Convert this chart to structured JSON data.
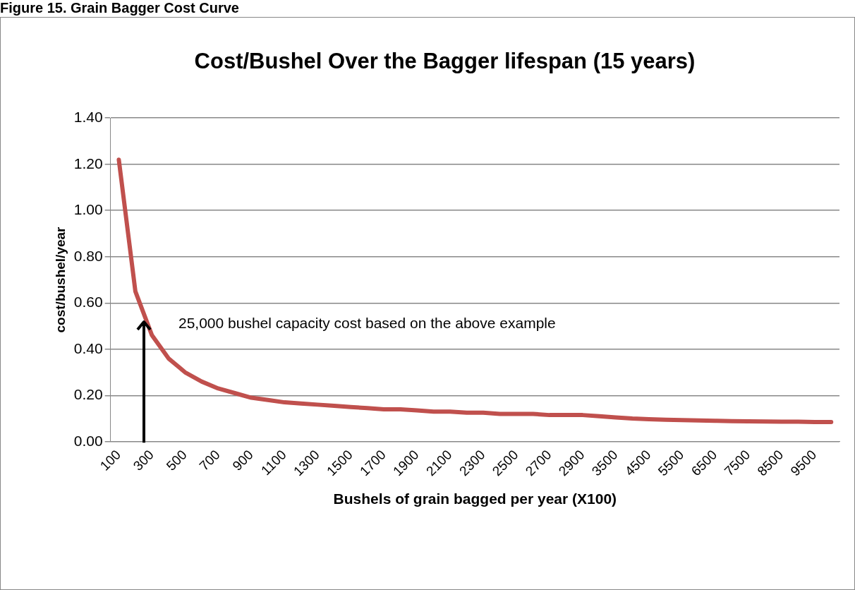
{
  "chart_data": {
    "type": "line",
    "title": "Cost/Bushel Over the Bagger lifespan (15 years)",
    "xlabel": "Bushels of grain bagged per year (X100)",
    "ylabel": "cost/bushel/year",
    "categories": [
      "100",
      null,
      "300",
      null,
      "500",
      null,
      "700",
      null,
      "900",
      null,
      "1100",
      null,
      "1300",
      null,
      "1500",
      null,
      "1700",
      null,
      "1900",
      null,
      "2100",
      null,
      "2300",
      null,
      "2500",
      null,
      "2700",
      null,
      "2900",
      null,
      "3500",
      null,
      "4500",
      null,
      "5500",
      null,
      "6500",
      null,
      "7500",
      null,
      "8500",
      null,
      "9500",
      null
    ],
    "series": [
      {
        "color": "#c0504d",
        "values": [
          1.22,
          0.65,
          0.46,
          0.36,
          0.3,
          0.26,
          0.23,
          0.21,
          0.19,
          0.18,
          0.17,
          0.165,
          0.16,
          0.155,
          0.15,
          0.145,
          0.14,
          0.14,
          0.135,
          0.13,
          0.13,
          0.125,
          0.125,
          0.12,
          0.12,
          0.12,
          0.115,
          0.115,
          0.115,
          0.11,
          0.105,
          0.1,
          0.097,
          0.095,
          0.093,
          0.092,
          0.09,
          0.089,
          0.088,
          0.087,
          0.086,
          0.086,
          0.085,
          0.085
        ]
      }
    ],
    "ylim": [
      0,
      1.4
    ],
    "yticks": [
      {
        "value": 0,
        "label": "0.00"
      },
      {
        "value": 0.2,
        "label": "0.20"
      },
      {
        "value": 0.4,
        "label": "0.40"
      },
      {
        "value": 0.6,
        "label": "0.60"
      },
      {
        "value": 0.8,
        "label": "0.80"
      },
      {
        "value": 1.0,
        "label": "1.00"
      },
      {
        "value": 1.2,
        "label": "1.20"
      },
      {
        "value": 1.4,
        "label": "1.40"
      }
    ],
    "grid": "y",
    "legend": false,
    "marker": "none",
    "line_style": "solid",
    "annotations": [
      "25,000 bushel capacity cost based on the above example",
      "Figure 15. Grain Bagger Cost Curve"
    ]
  }
}
